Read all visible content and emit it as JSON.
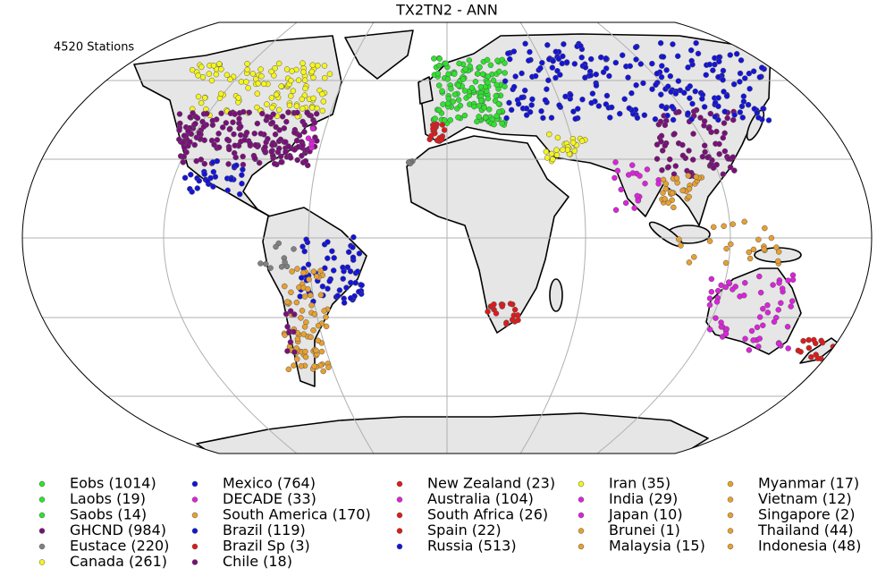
{
  "map": {
    "title": "TX2TN2 - ANN",
    "station_count": "4520 Stations",
    "legend": [
      {
        "label": "Eobs (1014)",
        "color": "#2ee22e"
      },
      {
        "label": "Laobs (19)",
        "color": "#2ee22e"
      },
      {
        "label": "Saobs (14)",
        "color": "#2ee22e"
      },
      {
        "label": "GHCND (984)",
        "color": "#7a0f7a"
      },
      {
        "label": "Eustace (220)",
        "color": "#808080"
      },
      {
        "label": "Canada (261)",
        "color": "#f5f51e"
      },
      {
        "label": "Mexico (764)",
        "color": "#1414d8"
      },
      {
        "label": "DECADE (33)",
        "color": "#dd22dd"
      },
      {
        "label": "South America (170)",
        "color": "#e8a030"
      },
      {
        "label": "Brazil (119)",
        "color": "#1414d8"
      },
      {
        "label": "Brazil Sp (3)",
        "color": "#dd1b1b"
      },
      {
        "label": "Chile (18)",
        "color": "#7a0f7a"
      },
      {
        "label": "New Zealand (23)",
        "color": "#dd1b1b"
      },
      {
        "label": "Australia (104)",
        "color": "#dd22dd"
      },
      {
        "label": "South Africa (26)",
        "color": "#dd1b1b"
      },
      {
        "label": "Spain (22)",
        "color": "#dd1b1b"
      },
      {
        "label": "Russia (513)",
        "color": "#1414d8"
      },
      {
        "label": "Iran (35)",
        "color": "#f5f51e"
      },
      {
        "label": "India (29)",
        "color": "#dd22dd"
      },
      {
        "label": "Japan (10)",
        "color": "#dd22dd"
      },
      {
        "label": "Brunei (1)",
        "color": "#e8a030"
      },
      {
        "label": "Malaysia (15)",
        "color": "#e8a030"
      },
      {
        "label": "Myanmar (17)",
        "color": "#e8a030"
      },
      {
        "label": "Vietnam (12)",
        "color": "#e8a030"
      },
      {
        "label": "Singapore (2)",
        "color": "#e8a030"
      },
      {
        "label": "Thailand (44)",
        "color": "#e8a030"
      },
      {
        "label": "Indonesia (48)",
        "color": "#e8a030"
      }
    ]
  }
}
